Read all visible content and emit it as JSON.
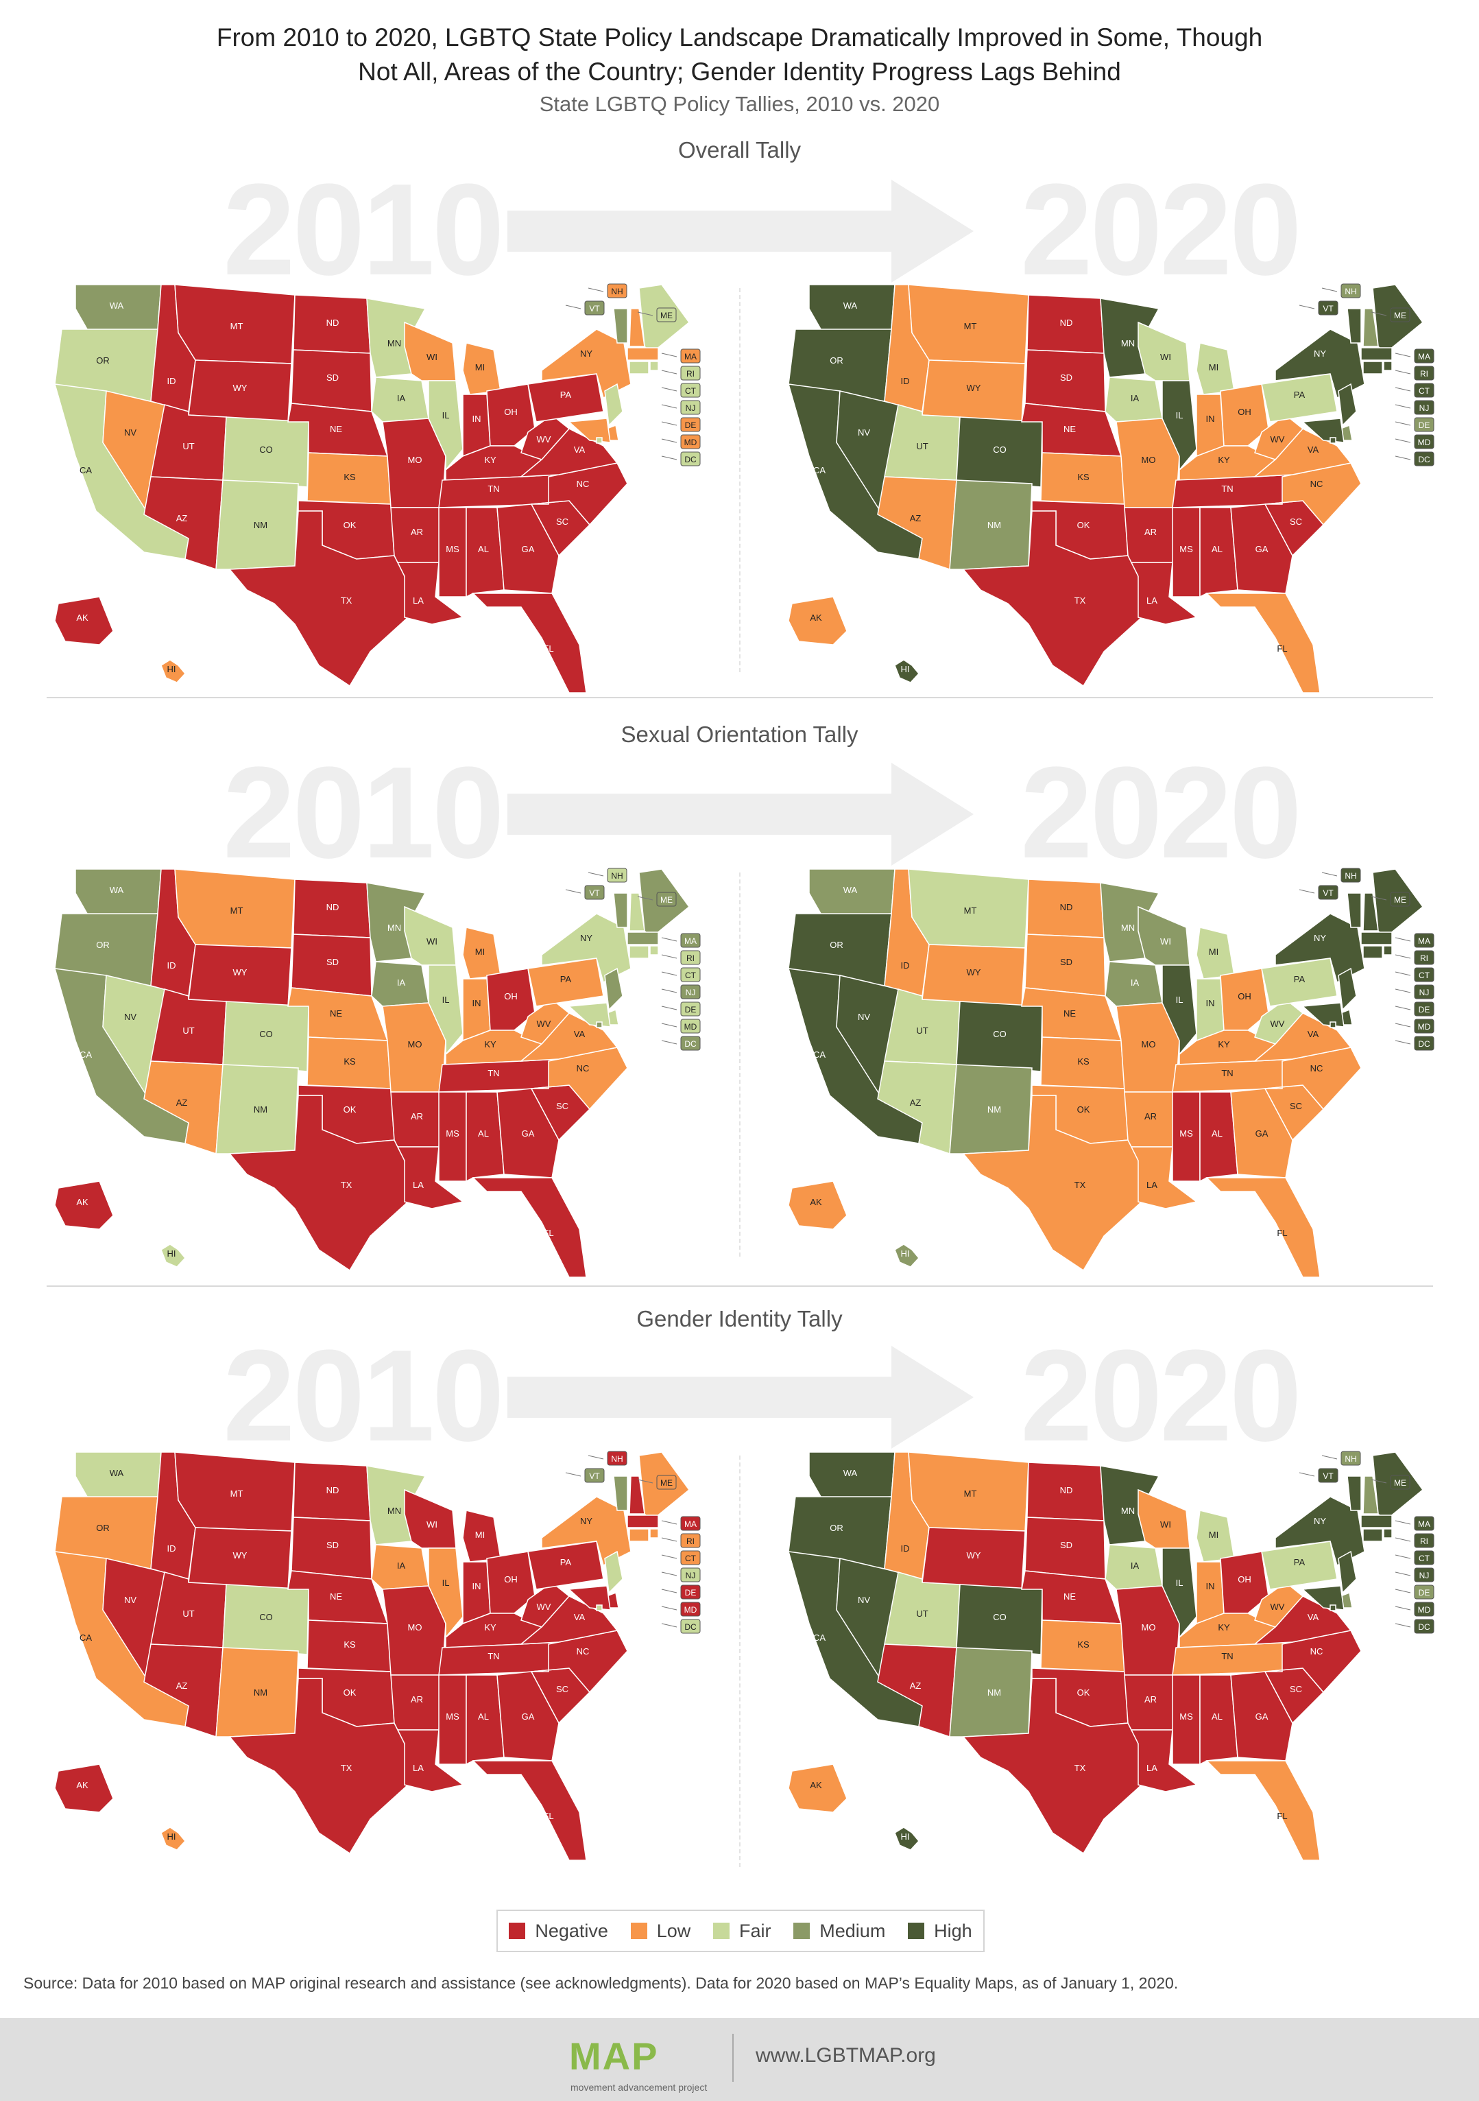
{
  "header": {
    "title": "From 2010 to 2020, LGBTQ State Policy Landscape Dramatically Improved in Some, Though Not All, Areas of the Country; Gender Identity Progress Lags Behind",
    "subtitle": "State LGBTQ Policy Tallies, 2010 vs. 2020"
  },
  "colors": {
    "Negative": "#c0272d",
    "Low": "#f7964a",
    "Fair": "#c7d99a",
    "Medium": "#8b9a66",
    "High": "#4b5a35"
  },
  "sections": [
    {
      "label": "Overall Tally",
      "year_left": "2010",
      "year_right": "2020",
      "map_2010": {
        "WA": "Medium",
        "OR": "Fair",
        "CA": "Fair",
        "NV": "Low",
        "ID": "Negative",
        "MT": "Negative",
        "WY": "Negative",
        "UT": "Negative",
        "AZ": "Negative",
        "CO": "Fair",
        "NM": "Fair",
        "ND": "Negative",
        "SD": "Negative",
        "NE": "Negative",
        "KS": "Low",
        "OK": "Negative",
        "TX": "Negative",
        "MN": "Fair",
        "IA": "Fair",
        "MO": "Negative",
        "AR": "Negative",
        "LA": "Negative",
        "WI": "Low",
        "IL": "Fair",
        "MI": "Low",
        "IN": "Negative",
        "OH": "Negative",
        "KY": "Negative",
        "TN": "Negative",
        "MS": "Negative",
        "AL": "Negative",
        "GA": "Negative",
        "FL": "Negative",
        "SC": "Negative",
        "NC": "Negative",
        "VA": "Negative",
        "WV": "Negative",
        "PA": "Negative",
        "NY": "Low",
        "VT": "Medium",
        "NH": "Low",
        "ME": "Fair",
        "MA": "Low",
        "RI": "Fair",
        "CT": "Fair",
        "NJ": "Fair",
        "DE": "Low",
        "MD": "Low",
        "DC": "Fair",
        "AK": "Negative",
        "HI": "Low"
      },
      "map_2020": {
        "WA": "High",
        "OR": "High",
        "CA": "High",
        "NV": "High",
        "ID": "Low",
        "MT": "Low",
        "WY": "Low",
        "UT": "Fair",
        "AZ": "Low",
        "CO": "High",
        "NM": "Medium",
        "ND": "Negative",
        "SD": "Negative",
        "NE": "Negative",
        "KS": "Low",
        "OK": "Negative",
        "TX": "Negative",
        "MN": "High",
        "IA": "Fair",
        "MO": "Low",
        "AR": "Negative",
        "LA": "Negative",
        "WI": "Fair",
        "IL": "High",
        "MI": "Fair",
        "IN": "Low",
        "OH": "Low",
        "KY": "Low",
        "TN": "Negative",
        "MS": "Negative",
        "AL": "Negative",
        "GA": "Negative",
        "FL": "Low",
        "SC": "Negative",
        "NC": "Low",
        "VA": "Low",
        "WV": "Low",
        "PA": "Fair",
        "NY": "High",
        "VT": "High",
        "NH": "Medium",
        "ME": "High",
        "MA": "High",
        "RI": "High",
        "CT": "High",
        "NJ": "High",
        "DE": "Medium",
        "MD": "High",
        "DC": "High",
        "AK": "Low",
        "HI": "High"
      }
    },
    {
      "label": "Sexual Orientation Tally",
      "year_left": "2010",
      "year_right": "2020",
      "map_2010": {
        "WA": "Medium",
        "OR": "Medium",
        "CA": "Medium",
        "NV": "Fair",
        "ID": "Negative",
        "MT": "Low",
        "WY": "Negative",
        "UT": "Negative",
        "AZ": "Low",
        "CO": "Fair",
        "NM": "Fair",
        "ND": "Negative",
        "SD": "Negative",
        "NE": "Low",
        "KS": "Low",
        "OK": "Negative",
        "TX": "Negative",
        "MN": "Medium",
        "IA": "Medium",
        "MO": "Low",
        "AR": "Negative",
        "LA": "Negative",
        "WI": "Fair",
        "IL": "Fair",
        "MI": "Low",
        "IN": "Low",
        "OH": "Negative",
        "KY": "Low",
        "TN": "Negative",
        "MS": "Negative",
        "AL": "Negative",
        "GA": "Negative",
        "FL": "Negative",
        "SC": "Negative",
        "NC": "Low",
        "VA": "Low",
        "WV": "Low",
        "PA": "Low",
        "NY": "Fair",
        "VT": "Medium",
        "NH": "Fair",
        "ME": "Medium",
        "MA": "Medium",
        "RI": "Fair",
        "CT": "Fair",
        "NJ": "Medium",
        "DE": "Fair",
        "MD": "Fair",
        "DC": "Medium",
        "AK": "Negative",
        "HI": "Fair"
      },
      "map_2020": {
        "WA": "Medium",
        "OR": "High",
        "CA": "High",
        "NV": "High",
        "ID": "Low",
        "MT": "Fair",
        "WY": "Low",
        "UT": "Fair",
        "AZ": "Fair",
        "CO": "High",
        "NM": "Medium",
        "ND": "Low",
        "SD": "Low",
        "NE": "Low",
        "KS": "Low",
        "OK": "Low",
        "TX": "Low",
        "MN": "Medium",
        "IA": "Medium",
        "MO": "Low",
        "AR": "Low",
        "LA": "Low",
        "WI": "Medium",
        "IL": "High",
        "MI": "Fair",
        "IN": "Fair",
        "OH": "Low",
        "KY": "Low",
        "TN": "Low",
        "MS": "Negative",
        "AL": "Negative",
        "GA": "Low",
        "FL": "Low",
        "SC": "Low",
        "NC": "Low",
        "VA": "Low",
        "WV": "Fair",
        "PA": "Fair",
        "NY": "High",
        "VT": "High",
        "NH": "High",
        "ME": "High",
        "MA": "High",
        "RI": "High",
        "CT": "High",
        "NJ": "High",
        "DE": "High",
        "MD": "High",
        "DC": "High",
        "AK": "Low",
        "HI": "Medium"
      }
    },
    {
      "label": "Gender Identity Tally",
      "year_left": "2010",
      "year_right": "2020",
      "map_2010": {
        "WA": "Fair",
        "OR": "Low",
        "CA": "Low",
        "NV": "Negative",
        "ID": "Negative",
        "MT": "Negative",
        "WY": "Negative",
        "UT": "Negative",
        "AZ": "Negative",
        "CO": "Fair",
        "NM": "Low",
        "ND": "Negative",
        "SD": "Negative",
        "NE": "Negative",
        "KS": "Negative",
        "OK": "Negative",
        "TX": "Negative",
        "MN": "Fair",
        "IA": "Low",
        "MO": "Negative",
        "AR": "Negative",
        "LA": "Negative",
        "WI": "Negative",
        "IL": "Low",
        "MI": "Negative",
        "IN": "Negative",
        "OH": "Negative",
        "KY": "Negative",
        "TN": "Negative",
        "MS": "Negative",
        "AL": "Negative",
        "GA": "Negative",
        "FL": "Negative",
        "SC": "Negative",
        "NC": "Negative",
        "VA": "Negative",
        "WV": "Negative",
        "PA": "Negative",
        "NY": "Low",
        "VT": "Medium",
        "NH": "Negative",
        "ME": "Low",
        "MA": "Negative",
        "RI": "Low",
        "CT": "Low",
        "NJ": "Fair",
        "DE": "Negative",
        "MD": "Negative",
        "DC": "Fair",
        "AK": "Negative",
        "HI": "Low"
      },
      "map_2020": {
        "WA": "High",
        "OR": "High",
        "CA": "High",
        "NV": "High",
        "ID": "Low",
        "MT": "Low",
        "WY": "Negative",
        "UT": "Fair",
        "AZ": "Negative",
        "CO": "High",
        "NM": "Medium",
        "ND": "Negative",
        "SD": "Negative",
        "NE": "Negative",
        "KS": "Low",
        "OK": "Negative",
        "TX": "Negative",
        "MN": "High",
        "IA": "Fair",
        "MO": "Negative",
        "AR": "Negative",
        "LA": "Negative",
        "WI": "Low",
        "IL": "High",
        "MI": "Fair",
        "IN": "Low",
        "OH": "Negative",
        "KY": "Low",
        "TN": "Low",
        "MS": "Negative",
        "AL": "Negative",
        "GA": "Negative",
        "FL": "Low",
        "SC": "Negative",
        "NC": "Negative",
        "VA": "Negative",
        "WV": "Low",
        "PA": "Fair",
        "NY": "High",
        "VT": "High",
        "NH": "Medium",
        "ME": "High",
        "MA": "High",
        "RI": "High",
        "CT": "High",
        "NJ": "High",
        "DE": "Medium",
        "MD": "High",
        "DC": "High",
        "AK": "Low",
        "HI": "High"
      }
    }
  ],
  "legend": [
    {
      "label": "Negative",
      "color": "#c0272d"
    },
    {
      "label": "Low",
      "color": "#f7964a"
    },
    {
      "label": "Fair",
      "color": "#c7d99a"
    },
    {
      "label": "Medium",
      "color": "#8b9a66"
    },
    {
      "label": "High",
      "color": "#4b5a35"
    }
  ],
  "source": "Source: Data for 2010 based on MAP original research and assistance (see acknowledgments). Data for 2020 based on MAP’s Equality Maps, as of January 1, 2020.",
  "footer": {
    "logo": "MAP",
    "logo_sub": "movement advancement project",
    "url": "www.LGBTMAP.org"
  }
}
